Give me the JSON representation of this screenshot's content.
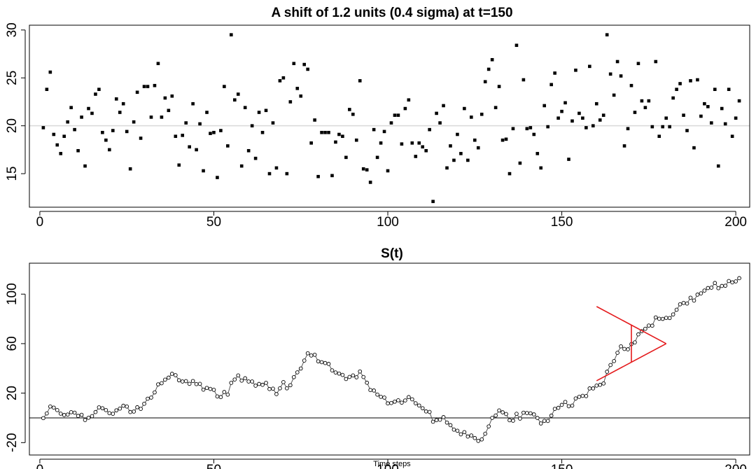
{
  "colors": {
    "background": "#ffffff",
    "axis": "#000000",
    "reference_line": "#d9d9d9",
    "mask": "#e41a1c"
  },
  "chart_data": [
    {
      "type": "scatter",
      "title": "A shift of 1.2 units (0.4 sigma) at t=150",
      "xlabel": "",
      "ylabel": "",
      "xlim": [
        -3,
        204
      ],
      "ylim": [
        11.5,
        30.5
      ],
      "xticks": [
        0,
        50,
        100,
        150,
        200
      ],
      "yticks": [
        15,
        20,
        25,
        30
      ],
      "reference_line": {
        "y": 20,
        "color": "#d9d9d9"
      },
      "marker": "filled-square",
      "grid": false,
      "x": [
        1,
        2,
        3,
        4,
        5,
        6,
        7,
        8,
        9,
        10,
        11,
        12,
        13,
        14,
        15,
        16,
        17,
        18,
        19,
        20,
        21,
        22,
        23,
        24,
        25,
        26,
        27,
        28,
        29,
        30,
        31,
        32,
        33,
        34,
        35,
        36,
        37,
        38,
        39,
        40,
        41,
        42,
        43,
        44,
        45,
        46,
        47,
        48,
        49,
        50,
        51,
        52,
        53,
        54,
        55,
        56,
        57,
        58,
        59,
        60,
        61,
        62,
        63,
        64,
        65,
        66,
        67,
        68,
        69,
        70,
        71,
        72,
        73,
        74,
        75,
        76,
        77,
        78,
        79,
        80,
        81,
        82,
        83,
        84,
        85,
        86,
        87,
        88,
        89,
        90,
        91,
        92,
        93,
        94,
        95,
        96,
        97,
        98,
        99,
        100,
        101,
        102,
        103,
        104,
        105,
        106,
        107,
        108,
        109,
        110,
        111,
        112,
        113,
        114,
        115,
        116,
        117,
        118,
        119,
        120,
        121,
        122,
        123,
        124,
        125,
        126,
        127,
        128,
        129,
        130,
        131,
        132,
        133,
        134,
        135,
        136,
        137,
        138,
        139,
        140,
        141,
        142,
        143,
        144,
        145,
        146,
        147,
        148,
        149,
        150,
        151,
        152,
        153,
        154,
        155,
        156,
        157,
        158,
        159,
        160,
        161,
        162,
        163,
        164,
        165,
        166,
        167,
        168,
        169,
        170,
        171,
        172,
        173,
        174,
        175,
        176,
        177,
        178,
        179,
        180,
        181,
        182,
        183,
        184,
        185,
        186,
        187,
        188,
        189,
        190,
        191,
        192,
        193,
        194,
        195,
        196,
        197,
        198,
        199,
        200,
        201
      ],
      "y": [
        19.8,
        23.8,
        25.6,
        19.1,
        18.0,
        17.1,
        18.9,
        20.4,
        21.9,
        19.6,
        17.4,
        20.9,
        15.8,
        21.8,
        21.3,
        23.3,
        23.8,
        19.3,
        18.5,
        17.5,
        19.5,
        22.8,
        21.4,
        22.3,
        19.4,
        15.5,
        20.4,
        23.5,
        18.7,
        24.1,
        24.1,
        20.9,
        24.2,
        26.5,
        20.9,
        22.9,
        21.6,
        23.1,
        18.9,
        15.9,
        19.0,
        20.3,
        17.8,
        22.3,
        17.5,
        20.2,
        15.3,
        21.4,
        19.2,
        19.3,
        14.6,
        19.5,
        24.1,
        17.9,
        29.5,
        22.7,
        23.3,
        15.8,
        21.9,
        17.4,
        20.0,
        16.6,
        21.4,
        19.3,
        21.6,
        15.0,
        20.3,
        15.6,
        24.7,
        25.0,
        15.0,
        22.5,
        26.5,
        23.9,
        23.1,
        26.4,
        25.9,
        18.2,
        20.6,
        14.7,
        19.3,
        19.3,
        19.3,
        14.8,
        18.3,
        19.1,
        18.9,
        16.7,
        21.7,
        21.2,
        18.5,
        24.7,
        15.5,
        15.4,
        14.1,
        19.6,
        16.7,
        18.2,
        19.4,
        15.3,
        20.3,
        21.1,
        21.1,
        18.1,
        21.8,
        22.7,
        18.2,
        16.8,
        18.2,
        17.8,
        17.4,
        19.6,
        12.1,
        21.3,
        20.3,
        22.1,
        15.6,
        17.9,
        16.4,
        19.1,
        17.1,
        21.8,
        16.4,
        20.9,
        18.5,
        17.7,
        21.2,
        24.6,
        25.9,
        26.9,
        21.9,
        24.1,
        18.5,
        18.6,
        15.0,
        19.7,
        28.4,
        16.1,
        24.8,
        19.7,
        19.8,
        19.1,
        17.1,
        15.6,
        22.1,
        19.9,
        24.3,
        25.5,
        20.8,
        21.5,
        22.4,
        16.5,
        20.5,
        25.8,
        21.3,
        20.8,
        19.8,
        26.2,
        20.0,
        22.3,
        20.6,
        21.1,
        29.5,
        25.4,
        23.2,
        26.7,
        25.2,
        17.9,
        19.7,
        24.2,
        21.4,
        26.5,
        22.6,
        21.9,
        22.6,
        19.9,
        26.7,
        18.9,
        19.9,
        20.8,
        19.9,
        22.9,
        23.8,
        24.4,
        21.1,
        19.5,
        24.7,
        17.7,
        24.8,
        21.0,
        22.3,
        22.0,
        20.3,
        23.8,
        15.8,
        21.8,
        20.2,
        23.8,
        18.9,
        20.8,
        22.6
      ]
    },
    {
      "type": "line",
      "title": "S(t)",
      "xlabel": "Time steps",
      "ylabel": "",
      "xlim": [
        -3,
        204
      ],
      "ylim": [
        -30,
        125
      ],
      "xticks": [
        0,
        50,
        100,
        150,
        200
      ],
      "yticks": [
        -20,
        20,
        60,
        100
      ],
      "reference_line": {
        "y": 0,
        "color": "#000000"
      },
      "marker": "open-circle",
      "grid": false,
      "x": [
        1,
        2,
        3,
        4,
        5,
        6,
        7,
        8,
        9,
        10,
        11,
        12,
        13,
        14,
        15,
        16,
        17,
        18,
        19,
        20,
        21,
        22,
        23,
        24,
        25,
        26,
        27,
        28,
        29,
        30,
        31,
        32,
        33,
        34,
        35,
        36,
        37,
        38,
        39,
        40,
        41,
        42,
        43,
        44,
        45,
        46,
        47,
        48,
        49,
        50,
        51,
        52,
        53,
        54,
        55,
        56,
        57,
        58,
        59,
        60,
        61,
        62,
        63,
        64,
        65,
        66,
        67,
        68,
        69,
        70,
        71,
        72,
        73,
        74,
        75,
        76,
        77,
        78,
        79,
        80,
        81,
        82,
        83,
        84,
        85,
        86,
        87,
        88,
        89,
        90,
        91,
        92,
        93,
        94,
        95,
        96,
        97,
        98,
        99,
        100,
        101,
        102,
        103,
        104,
        105,
        106,
        107,
        108,
        109,
        110,
        111,
        112,
        113,
        114,
        115,
        116,
        117,
        118,
        119,
        120,
        121,
        122,
        123,
        124,
        125,
        126,
        127,
        128,
        129,
        130,
        131,
        132,
        133,
        134,
        135,
        136,
        137,
        138,
        139,
        140,
        141,
        142,
        143,
        144,
        145,
        146,
        147,
        148,
        149,
        150,
        151,
        152,
        153,
        154,
        155,
        156,
        157,
        158,
        159,
        160,
        161,
        162,
        163,
        164,
        165,
        166,
        167,
        168,
        169,
        170,
        171,
        172,
        173,
        174,
        175,
        176,
        177,
        178,
        179,
        180,
        181,
        182,
        183,
        184,
        185,
        186,
        187,
        188,
        189,
        190,
        191,
        192,
        193,
        194,
        195,
        196,
        197,
        198,
        199,
        200,
        201
      ],
      "y": [
        -0.2,
        3.6,
        9.2,
        8.3,
        6.3,
        3.4,
        2.3,
        2.7,
        4.6,
        4.2,
        1.6,
        2.5,
        -1.7,
        0.1,
        1.4,
        4.7,
        8.5,
        7.8,
        6.3,
        3.8,
        3.3,
        6.1,
        7.5,
        9.8,
        9.2,
        4.7,
        5.1,
        8.6,
        7.3,
        11.4,
        15.5,
        16.4,
        20.6,
        27.1,
        28.0,
        30.9,
        32.5,
        35.6,
        34.5,
        30.4,
        29.4,
        29.7,
        27.5,
        29.8,
        27.3,
        27.5,
        22.8,
        24.2,
        23.4,
        22.7,
        17.3,
        16.8,
        20.9,
        18.8,
        28.3,
        31.0,
        34.3,
        30.1,
        32.0,
        29.4,
        29.4,
        26.0,
        27.4,
        26.7,
        28.3,
        23.3,
        23.6,
        19.2,
        23.9,
        28.9,
        23.9,
        26.4,
        32.9,
        36.8,
        39.9,
        46.3,
        52.2,
        50.4,
        51.0,
        45.7,
        45.0,
        44.3,
        43.6,
        38.4,
        36.7,
        35.8,
        34.7,
        31.4,
        33.1,
        34.3,
        32.8,
        37.5,
        33.0,
        28.4,
        22.5,
        22.1,
        18.8,
        17.0,
        16.4,
        11.7,
        12.0,
        13.1,
        14.2,
        12.3,
        14.1,
        16.8,
        15.0,
        11.8,
        10.0,
        7.8,
        5.2,
        4.8,
        -3.1,
        -1.8,
        -1.5,
        0.6,
        -3.8,
        -5.9,
        -9.5,
        -10.4,
        -13.3,
        -11.5,
        -15.1,
        -14.2,
        -16.3,
        -18.6,
        -17.4,
        -12.8,
        -6.9,
        0.0,
        1.9,
        6.0,
        4.5,
        3.1,
        -1.9,
        -2.3,
        3.3,
        -0.6,
        4.2,
        3.9,
        3.7,
        2.8,
        -0.1,
        -4.5,
        -2.4,
        -2.5,
        1.8,
        7.3,
        8.1,
        10.5,
        12.9,
        9.4,
        9.9,
        15.7,
        17.0,
        17.8,
        17.6,
        23.8,
        23.8,
        26.1,
        26.7,
        27.8,
        37.3,
        42.7,
        45.9,
        52.6,
        57.8,
        55.7,
        55.4,
        59.6,
        61.0,
        67.5,
        70.1,
        72.0,
        74.6,
        74.5,
        81.2,
        80.1,
        80.0,
        80.8,
        80.7,
        83.6,
        87.4,
        91.8,
        92.9,
        92.4,
        97.1,
        94.8,
        99.6,
        100.6,
        102.9,
        104.9,
        105.2,
        109.0,
        104.8,
        106.6,
        106.8,
        110.6,
        109.5,
        110.3,
        112.9
      ],
      "v_mask": {
        "origin": [
          170,
          60
        ],
        "apex": [
          180,
          60
        ],
        "lower_arm_end": [
          160,
          30
        ],
        "upper_arm_end": [
          160,
          90
        ],
        "vertical_span": [
          45,
          75
        ],
        "color": "#e41a1c"
      }
    }
  ]
}
